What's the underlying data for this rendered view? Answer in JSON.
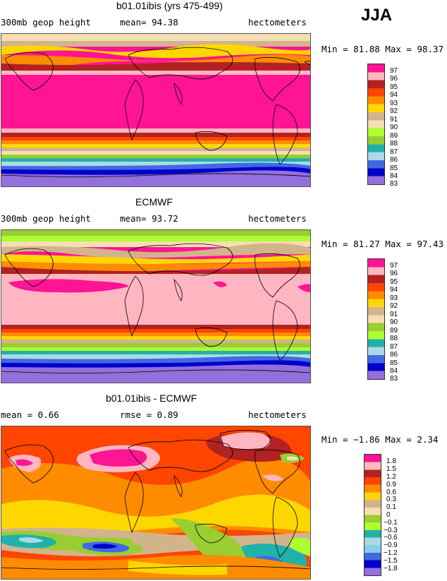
{
  "season": "JJA",
  "colors": {
    "c97": "#ff1493",
    "c96": "#ffb6c1",
    "c95": "#b22222",
    "c94": "#ff4500",
    "c93": "#ff8c00",
    "c92": "#ffd700",
    "c91": "#d2b48c",
    "c90": "#f5deb3",
    "c89": "#9acd32",
    "c88": "#adff2f",
    "c87": "#20b2aa",
    "c86": "#add8e6",
    "c85": "#87ceeb",
    "c84": "#4169e1",
    "c83": "#0000cd",
    "c82": "#9370db"
  },
  "panels": [
    {
      "title": "b01.01ibis (yrs 475-499)",
      "left_label": "300mb geop height",
      "center_label": "mean=   94.38",
      "right_label": "hectometers",
      "minmax": "Min =  81.88 Max =  98.37",
      "legend_labels": [
        "97",
        "96",
        "95",
        "94",
        "93",
        "92",
        "91",
        "90",
        "89",
        "88",
        "87",
        "86",
        "85",
        "84",
        "83"
      ]
    },
    {
      "title": "ECMWF",
      "left_label": "300mb geop height",
      "center_label": "mean=   93.72",
      "right_label": "hectometers",
      "minmax": "Min =  81.27 Max =  97.43",
      "legend_labels": [
        "97",
        "96",
        "95",
        "94",
        "93",
        "92",
        "91",
        "90",
        "89",
        "88",
        "87",
        "86",
        "85",
        "84",
        "83"
      ]
    },
    {
      "title": "b01.01ibis - ECMWF",
      "left_label": "mean =    0.66",
      "center_label": "rmse =    0.89",
      "right_label": "hectometers",
      "minmax": "Min =  −1.86 Max =   2.34",
      "legend_labels": [
        "1.8",
        "1.5",
        "1.2",
        "0.9",
        "0.6",
        "0.3",
        "0.1",
        "0",
        "−0.1",
        "−0.3",
        "−0.6",
        "−0.9",
        "−1.2",
        "−1.5",
        "−1.8"
      ]
    }
  ],
  "chart_data": [
    {
      "type": "heatmap",
      "title": "b01.01ibis (yrs 475-499)",
      "variable": "300mb geop height",
      "units": "hectometers",
      "mean": 94.38,
      "min": 81.88,
      "max": 98.37,
      "levels": [
        97,
        96,
        95,
        94,
        93,
        92,
        91,
        90,
        89,
        88,
        87,
        86,
        85,
        84,
        83
      ]
    },
    {
      "type": "heatmap",
      "title": "ECMWF",
      "variable": "300mb geop height",
      "units": "hectometers",
      "mean": 93.72,
      "min": 81.27,
      "max": 97.43,
      "levels": [
        97,
        96,
        95,
        94,
        93,
        92,
        91,
        90,
        89,
        88,
        87,
        86,
        85,
        84,
        83
      ]
    },
    {
      "type": "heatmap",
      "title": "b01.01ibis - ECMWF",
      "units": "hectometers",
      "mean": 0.66,
      "rmse": 0.89,
      "min": -1.86,
      "max": 2.34,
      "levels": [
        1.8,
        1.5,
        1.2,
        0.9,
        0.6,
        0.3,
        0.1,
        0,
        -0.1,
        -0.3,
        -0.6,
        -0.9,
        -1.2,
        -1.5,
        -1.8
      ]
    }
  ]
}
